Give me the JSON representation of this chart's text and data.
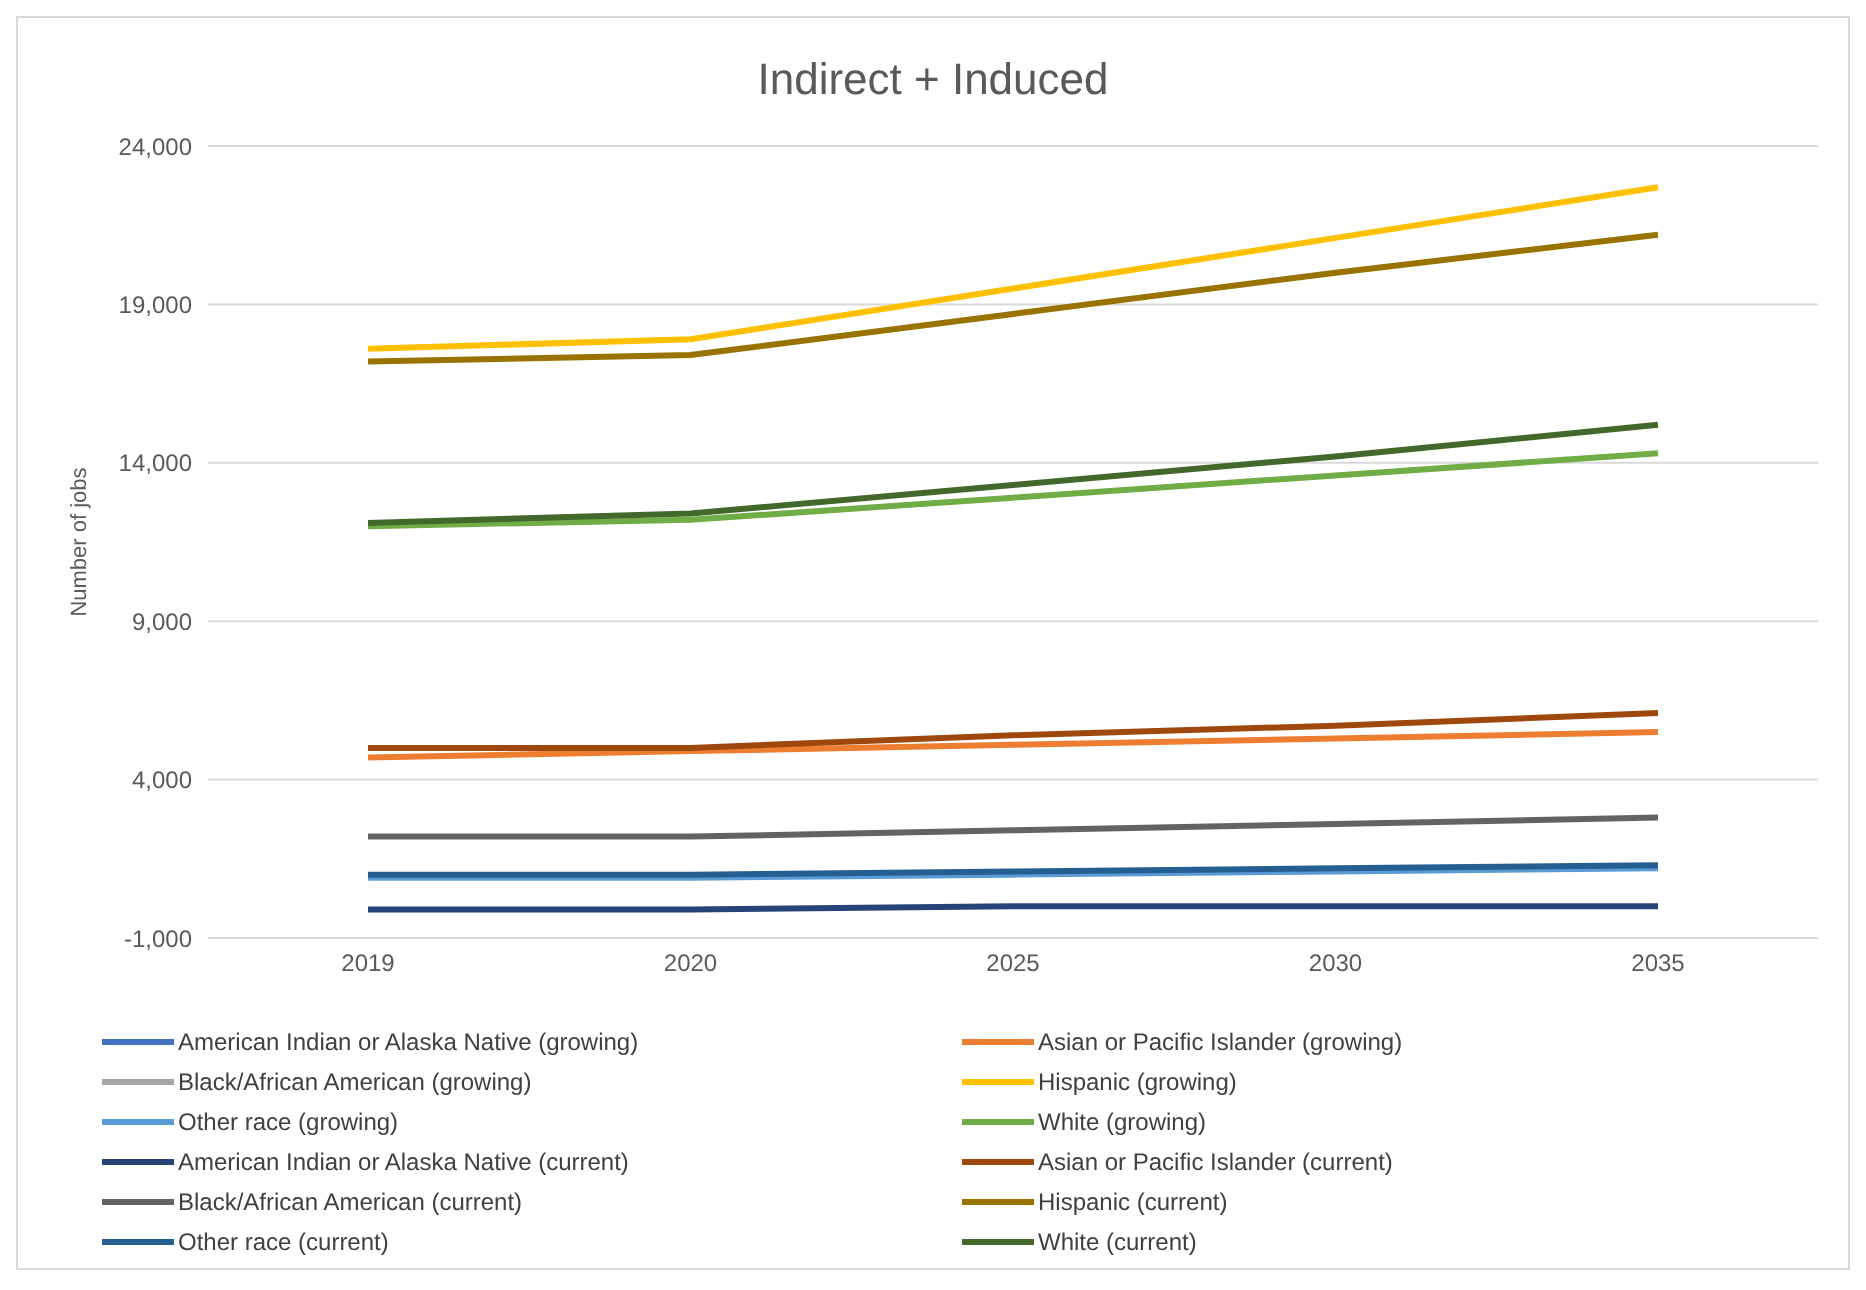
{
  "chart_data": {
    "type": "line",
    "title": "Indirect + Induced",
    "ylabel": "Number of jobs",
    "categories": [
      "2019",
      "2020",
      "2025",
      "2030",
      "2035"
    ],
    "ylim": [
      -1000,
      24000
    ],
    "yticks": [
      {
        "value": -1000,
        "label": "-1,000"
      },
      {
        "value": 4000,
        "label": "4,000"
      },
      {
        "value": 9000,
        "label": "9,000"
      },
      {
        "value": 14000,
        "label": "14,000"
      },
      {
        "value": 19000,
        "label": "19,000"
      },
      {
        "value": 24000,
        "label": "24,000"
      }
    ],
    "grid": "y",
    "legend": "bottom",
    "marker": "none",
    "line_style": "solid",
    "series": [
      {
        "name": "American Indian or Alaska Native (growing)",
        "color": "#4472c4",
        "values": [
          null,
          null,
          null,
          null,
          null
        ]
      },
      {
        "name": "Asian or Pacific Islander (growing)",
        "color": "#ed7d31",
        "values": [
          4700,
          4900,
          5100,
          5300,
          5500
        ]
      },
      {
        "name": "Black/African American (growing)",
        "color": "#a5a5a5",
        "values": [
          null,
          null,
          null,
          null,
          null
        ]
      },
      {
        "name": "Hispanic (growing)",
        "color": "#ffc000",
        "values": [
          17600,
          17900,
          19500,
          21100,
          22700
        ]
      },
      {
        "name": "Other race (growing)",
        "color": "#5b9bd5",
        "values": [
          900,
          900,
          1000,
          1100,
          1200
        ]
      },
      {
        "name": "White (growing)",
        "color": "#70ad47",
        "values": [
          12000,
          12200,
          12900,
          13600,
          14300
        ]
      },
      {
        "name": "American Indian or Alaska Native (current)",
        "color": "#264478",
        "values": [
          -100,
          -100,
          0,
          0,
          0
        ]
      },
      {
        "name": "Asian or Pacific Islander (current)",
        "color": "#9e480e",
        "values": [
          5000,
          5000,
          5400,
          5700,
          6100
        ]
      },
      {
        "name": "Black/African American (current)",
        "color": "#636363",
        "values": [
          2200,
          2200,
          2400,
          2600,
          2800
        ]
      },
      {
        "name": "Hispanic (current)",
        "color": "#997300",
        "values": [
          17200,
          17400,
          18700,
          20000,
          21200
        ]
      },
      {
        "name": "Other race (current)",
        "color": "#255e91",
        "values": [
          1000,
          1000,
          1100,
          1200,
          1300
        ]
      },
      {
        "name": "White (current)",
        "color": "#43682b",
        "values": [
          12100,
          12400,
          13300,
          14200,
          15200
        ]
      }
    ]
  }
}
